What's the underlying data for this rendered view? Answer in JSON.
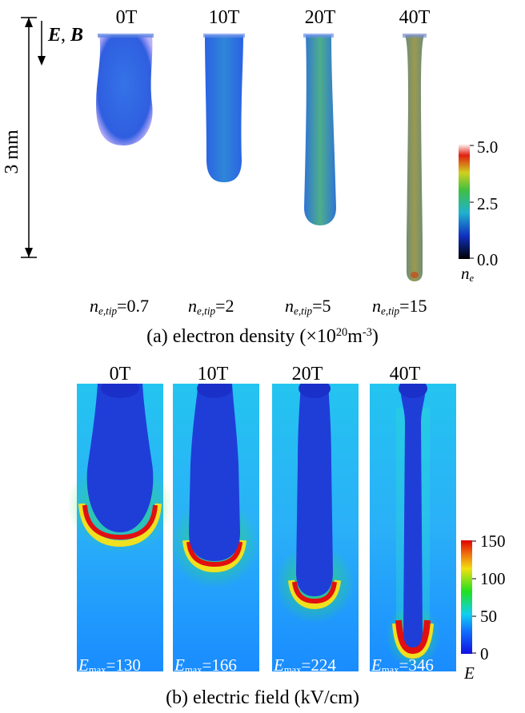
{
  "panel_a": {
    "columns": [
      "0T",
      "10T",
      "20T",
      "40T"
    ],
    "scale_label": "3 mm",
    "direction_label": {
      "e": "E",
      "sep": ", ",
      "b": "B"
    },
    "tip_values": [
      "0.7",
      "2",
      "5",
      "15"
    ],
    "tip_symbol": "n",
    "tip_sub": "e,tip",
    "colorbar": {
      "ticks": [
        "5.0",
        "2.5",
        "0.0"
      ],
      "symbol": "n",
      "symbol_sub": "e"
    },
    "caption": {
      "prefix": "(a) electron density (×10",
      "exp1": "20",
      "mid": "m",
      "exp2": "-3",
      "suffix": ")"
    }
  },
  "panel_b": {
    "columns": [
      "0T",
      "10T",
      "20T",
      "40T"
    ],
    "emax_symbol": "E",
    "emax_sub": "max",
    "emax_values": [
      "130",
      "166",
      "224",
      "346"
    ],
    "colorbar": {
      "ticks": [
        "150",
        "100",
        "50",
        "0"
      ],
      "symbol": "E"
    },
    "caption": "(b) electric field (kV/cm)"
  },
  "colors": {
    "field_background": "#1aa0ff",
    "channel_blue": "#1f3ed8",
    "density_blue": "#2f6fe8",
    "density_green": "#49b08a",
    "hot_red": "#e01010"
  }
}
